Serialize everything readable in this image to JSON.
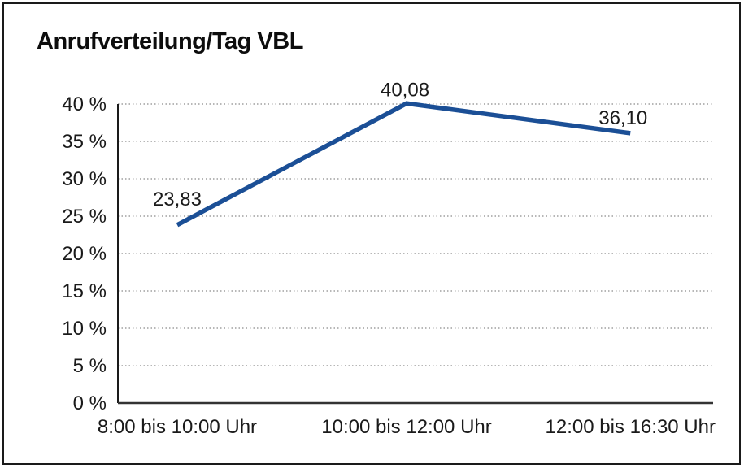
{
  "title": "Anrufverteilung/Tag VBL",
  "colors": {
    "line": "#1b4f96",
    "grid": "#8c8c8c",
    "y_axis": "#1a1a1a",
    "x_axis": "#333333",
    "text": "#1a1a1a",
    "background": "#ffffff",
    "border": "#1a1a1a"
  },
  "chart_data": {
    "type": "line",
    "title": "Anrufverteilung/Tag VBL",
    "categories": [
      "8:00 bis 10:00 Uhr",
      "10:00 bis 12:00 Uhr",
      "12:00 bis 16:30 Uhr"
    ],
    "values": [
      23.83,
      40.08,
      36.1
    ],
    "data_labels": [
      "23,83",
      "40,08",
      "36,10"
    ],
    "xlabel": "",
    "ylabel": "",
    "ylim": [
      0,
      40
    ],
    "y_tick_step": 5,
    "y_tick_labels": [
      "0 %",
      "5 %",
      "10 %",
      "15 %",
      "20 %",
      "25 %",
      "30 %",
      "35 %",
      "40 %"
    ],
    "grid": "horizontal-dotted",
    "legend": "none",
    "line_color": "#1b4f96"
  }
}
